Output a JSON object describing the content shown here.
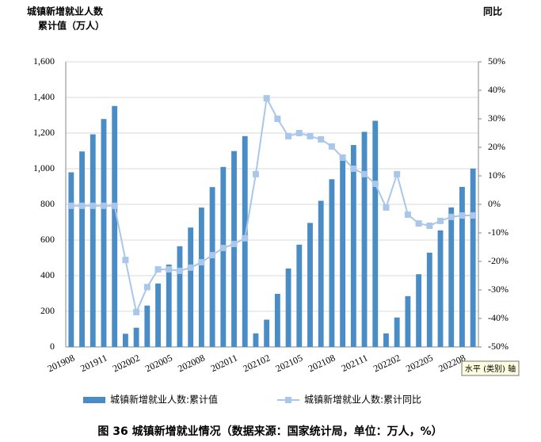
{
  "chart_data": {
    "type": "bar_line",
    "y_title_lines": [
      "城镇新增就业人数",
      "累计值（万人）"
    ],
    "y2_title": "同比",
    "categories": [
      "201908",
      null,
      null,
      "201911",
      null,
      null,
      "202002",
      null,
      null,
      "202005",
      null,
      null,
      "202008",
      null,
      null,
      "202011",
      null,
      null,
      "202102",
      null,
      null,
      "202105",
      null,
      null,
      "202108",
      null,
      null,
      "202111",
      null,
      null,
      "202202",
      null,
      null,
      "202205",
      null,
      null,
      "202208",
      null
    ],
    "series": [
      {
        "name": "城镇新增就业人数:累计值",
        "color": "#4a8dc6",
        "kind": "bar",
        "values": [
          980,
          1097,
          1193,
          1279,
          1352,
          74,
          108,
          232,
          356,
          462,
          565,
          670,
          782,
          897,
          1010,
          1099,
          1183,
          76,
          153,
          298,
          440,
          574,
          696,
          820,
          941,
          1045,
          1133,
          1207,
          1269,
          76,
          165,
          285,
          408,
          529,
          654,
          783,
          898,
          1001
        ]
      },
      {
        "name": "城镇新增就业人数:累计同比",
        "color": "#a9c7ea",
        "kind": "line",
        "axis": "y2",
        "values": [
          -0.5,
          -0.5,
          -0.5,
          -0.5,
          -0.5,
          -19.5,
          -37.8,
          -29,
          -22.8,
          -22.8,
          -23.3,
          -22.2,
          -20.3,
          -17.8,
          -15.3,
          -13.9,
          -11.9,
          10.6,
          37.2,
          30,
          23.9,
          25,
          23.9,
          22.8,
          20.3,
          16.4,
          12.5,
          10.6,
          7.2,
          -1.1,
          10.6,
          -3.6,
          -6.7,
          -7.5,
          -5.8,
          -4.4,
          -3.9,
          -3.9
        ]
      }
    ],
    "ylim": [
      0,
      1600
    ],
    "yticks": [
      0,
      200,
      400,
      600,
      800,
      {
        "value": 1000,
        "label": "1,000"
      },
      {
        "value": 1200,
        "label": "1,200"
      },
      {
        "value": 1400,
        "label": "1,400"
      },
      {
        "value": 1600,
        "label": "1,600"
      }
    ],
    "y2lim": [
      -50,
      50
    ],
    "y2ticks": [
      {
        "value": -50,
        "label": "-50%"
      },
      {
        "value": -40,
        "label": "-40%"
      },
      {
        "value": -30,
        "label": "-30%"
      },
      {
        "value": -20,
        "label": "-20%"
      },
      {
        "value": -10,
        "label": "-10%"
      },
      {
        "value": 0,
        "label": "0%"
      },
      {
        "value": 10,
        "label": "10%"
      },
      {
        "value": 20,
        "label": "20%"
      },
      {
        "value": 30,
        "label": "30%"
      },
      {
        "value": 40,
        "label": "40%"
      },
      {
        "value": 50,
        "label": "50%"
      }
    ],
    "tooltip": "水平 (类别) 轴",
    "caption": "图 36  城镇新增就业情况（数据来源：国家统计局，单位：万人，%）"
  }
}
